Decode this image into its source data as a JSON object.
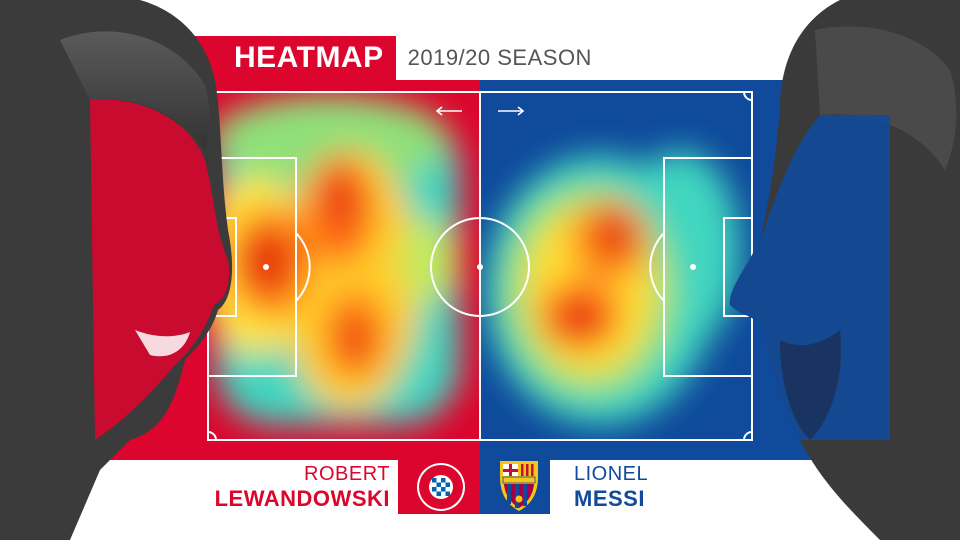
{
  "header": {
    "title": "HEATMAP",
    "season": "2019/20 SEASON"
  },
  "players": {
    "left": {
      "first_name": "ROBERT",
      "last_name": "LEWANDOWSKI",
      "club_badge_text": "FC BAYERN MÜNCHEN"
    },
    "right": {
      "first_name": "LIONEL",
      "last_name": "MESSI",
      "club_badge_text": "FCB"
    }
  },
  "colors": {
    "left_team": "#dc052d",
    "right_team": "#0f4a9c"
  },
  "icons": {
    "left_direction": "arrow-left-icon",
    "right_direction": "arrow-right-icon"
  }
}
